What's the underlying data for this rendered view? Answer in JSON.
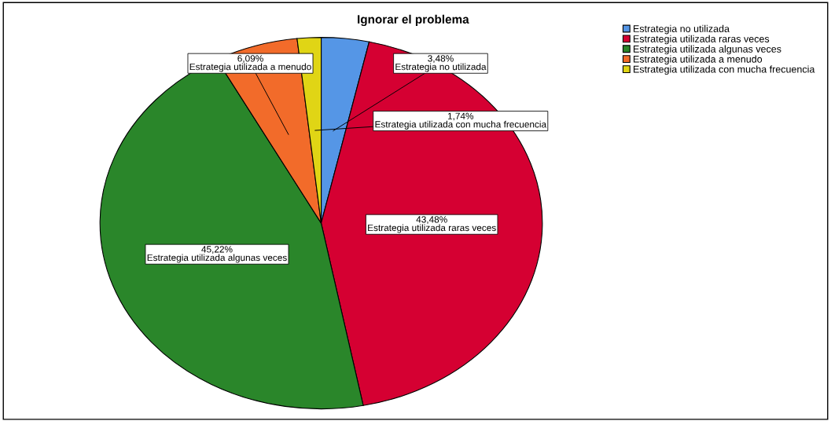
{
  "chart_data": {
    "type": "pie",
    "title": "Ignorar el problema",
    "categories": [
      "Estrategia no utilizada",
      "Estrategia utilizada raras veces",
      "Estrategia utilizada algunas veces",
      "Estrategia utilizada a menudo",
      "Estrategia utilizada con mucha frecuencia"
    ],
    "values": [
      3.48,
      43.48,
      45.22,
      6.09,
      1.74
    ],
    "colors": [
      "#5596e6",
      "#d50032",
      "#2a862a",
      "#f26b2a",
      "#e0d515"
    ],
    "value_labels": [
      "3,48%",
      "43,48%",
      "45,22%",
      "6,09%",
      "1,74%"
    ],
    "legend": "top right"
  }
}
